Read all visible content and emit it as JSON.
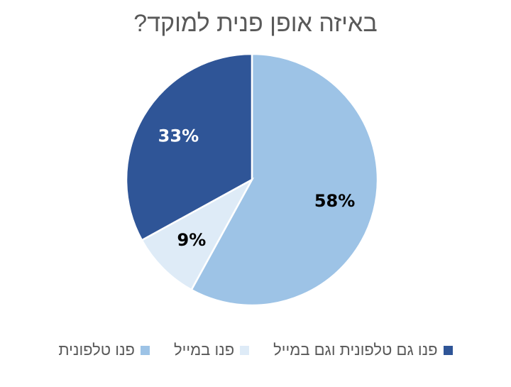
{
  "chart_data": {
    "type": "pie",
    "title": "באיזה אופן פנית למוקד?",
    "categories": [
      "פנו טלפונית",
      "פנו במייל",
      "פנו גם טלפונית וגם במייל"
    ],
    "values": [
      58,
      9,
      33
    ],
    "data_labels": [
      "58%",
      "9%",
      "33%"
    ],
    "colors": [
      "#9DC3E6",
      "#DEEBF7",
      "#2F5597"
    ],
    "label_colors": [
      "#000000",
      "#000000",
      "#FFFFFF"
    ],
    "legend_position": "bottom"
  }
}
